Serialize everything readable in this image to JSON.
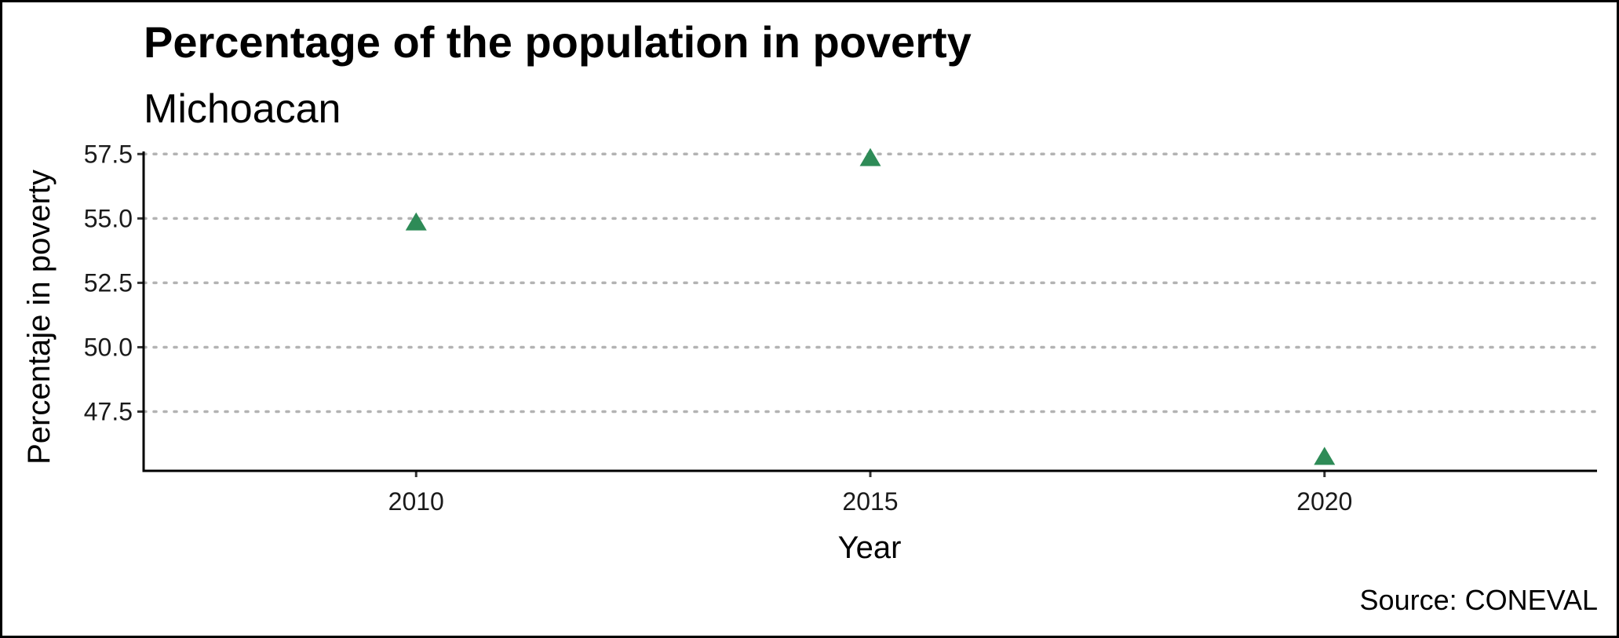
{
  "chart_data": {
    "type": "scatter",
    "title": "Percentage of the population in poverty",
    "subtitle": "Michoacan",
    "xlabel": "Year",
    "ylabel": "Percentaje in poverty",
    "caption": "Source: CONEVAL",
    "x_ticks": [
      2010,
      2015,
      2020
    ],
    "y_ticks": [
      "47.5",
      "50.0",
      "52.5",
      "55.0",
      "57.5"
    ],
    "xlim": [
      2007,
      2023
    ],
    "ylim": [
      45.2,
      57.6
    ],
    "grid": "horizontal-dotted",
    "marker": "triangle",
    "point_color": "#2e8b57",
    "series": [
      {
        "x": [
          2010,
          2015,
          2020
        ],
        "values": [
          54.8,
          57.3,
          45.7
        ]
      }
    ]
  }
}
